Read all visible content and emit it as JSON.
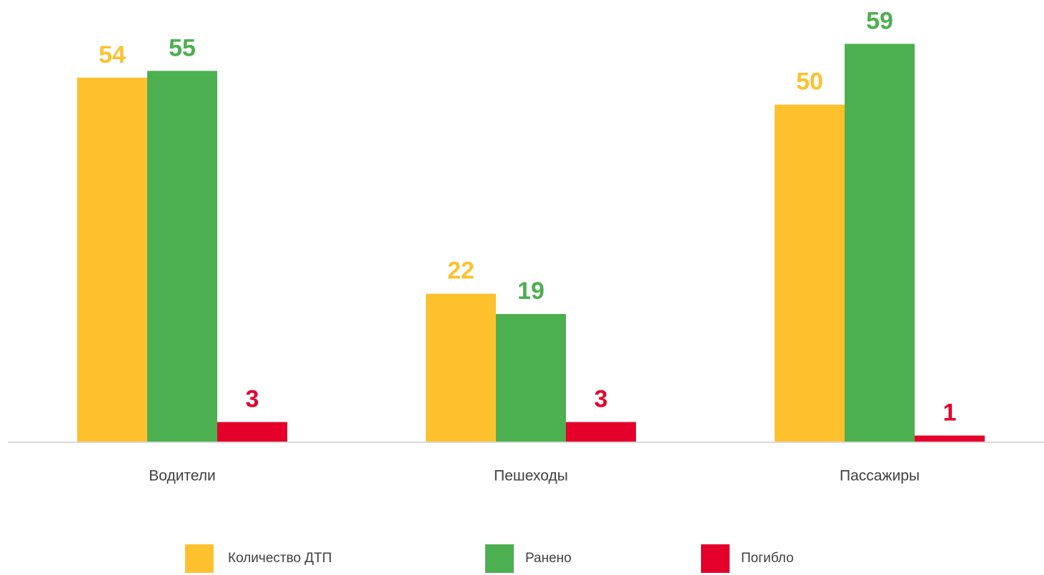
{
  "chart_data": {
    "type": "bar",
    "categories": [
      "Водители",
      "Пешеходы",
      "Пассажиры"
    ],
    "series": [
      {
        "name": "Количество ДТП",
        "color": "#fdc12e",
        "values": [
          54,
          22,
          50
        ]
      },
      {
        "name": "Ранено",
        "color": "#4caf50",
        "values": [
          55,
          19,
          59
        ]
      },
      {
        "name": "Погибло",
        "color": "#e4002b",
        "values": [
          3,
          3,
          1
        ]
      }
    ],
    "ylim": [
      0,
      60
    ],
    "legend": "bottom"
  }
}
